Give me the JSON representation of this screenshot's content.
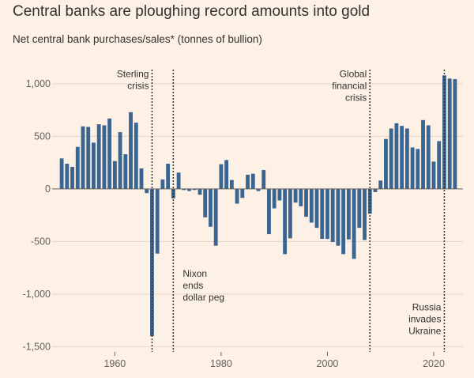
{
  "chart_data": {
    "type": "bar",
    "title": "Central banks are ploughing record amounts into gold",
    "subtitle": "Net central bank purchases/sales* (tonnes of bullion)",
    "ylim": [
      -1550,
      1120
    ],
    "xlim": [
      1948.5,
      2025.5
    ],
    "yticks": [
      {
        "value": 1000,
        "label": "1,000"
      },
      {
        "value": 500,
        "label": "500"
      },
      {
        "value": 0,
        "label": "0"
      },
      {
        "value": -500,
        "label": "-500"
      },
      {
        "value": -1000,
        "label": "-1,000"
      },
      {
        "value": -1500,
        "label": "-1,500"
      }
    ],
    "xticks": [
      {
        "value": 1960,
        "label": "1960"
      },
      {
        "value": 1980,
        "label": "1980"
      },
      {
        "value": 2000,
        "label": "2000"
      },
      {
        "value": 2020,
        "label": "2020"
      }
    ],
    "x": [
      1950,
      1951,
      1952,
      1953,
      1954,
      1955,
      1956,
      1957,
      1958,
      1959,
      1960,
      1961,
      1962,
      1963,
      1964,
      1965,
      1966,
      1967,
      1968,
      1969,
      1970,
      1971,
      1972,
      1973,
      1974,
      1975,
      1976,
      1977,
      1978,
      1979,
      1980,
      1981,
      1982,
      1983,
      1984,
      1985,
      1986,
      1987,
      1988,
      1989,
      1990,
      1991,
      1992,
      1993,
      1994,
      1995,
      1996,
      1997,
      1998,
      1999,
      2000,
      2001,
      2002,
      2003,
      2004,
      2005,
      2006,
      2007,
      2008,
      2009,
      2010,
      2011,
      2012,
      2013,
      2014,
      2015,
      2016,
      2017,
      2018,
      2019,
      2020,
      2021,
      2022,
      2023,
      2024
    ],
    "values": [
      290,
      240,
      210,
      400,
      595,
      590,
      440,
      615,
      605,
      670,
      265,
      540,
      330,
      730,
      630,
      195,
      -40,
      -1400,
      -615,
      90,
      240,
      -90,
      155,
      -10,
      -20,
      -10,
      -55,
      -270,
      -360,
      -540,
      235,
      275,
      85,
      -140,
      -85,
      135,
      145,
      -20,
      180,
      -430,
      -185,
      -110,
      -620,
      -470,
      -130,
      -165,
      -265,
      -320,
      -370,
      -475,
      -475,
      -505,
      -540,
      -620,
      -480,
      -665,
      -370,
      -485,
      -235,
      -30,
      80,
      475,
      575,
      625,
      600,
      575,
      395,
      380,
      655,
      605,
      260,
      455,
      1080,
      1050,
      1045
    ],
    "annotations": [
      {
        "text": [
          "Sterling",
          "crisis"
        ],
        "x": 1967,
        "align": "right",
        "y": 1065
      },
      {
        "text": [
          "Nixon",
          "ends",
          "dollar peg"
        ],
        "x": 1971,
        "align": "left",
        "y": -835
      },
      {
        "text": [
          "Global",
          "financial",
          "crisis"
        ],
        "x": 2008,
        "align": "right",
        "y": 1065
      },
      {
        "text": [
          "Russia",
          "invades",
          "Ukraine"
        ],
        "x": 2022,
        "align": "right",
        "y": -1155
      }
    ],
    "grid": true,
    "legend": "none"
  },
  "colors": {
    "background": "#fdf1e6",
    "bar": "#3a6591",
    "grid": "#e3d5c7",
    "zero_line": "#66605c",
    "event_line": "#33302e"
  }
}
